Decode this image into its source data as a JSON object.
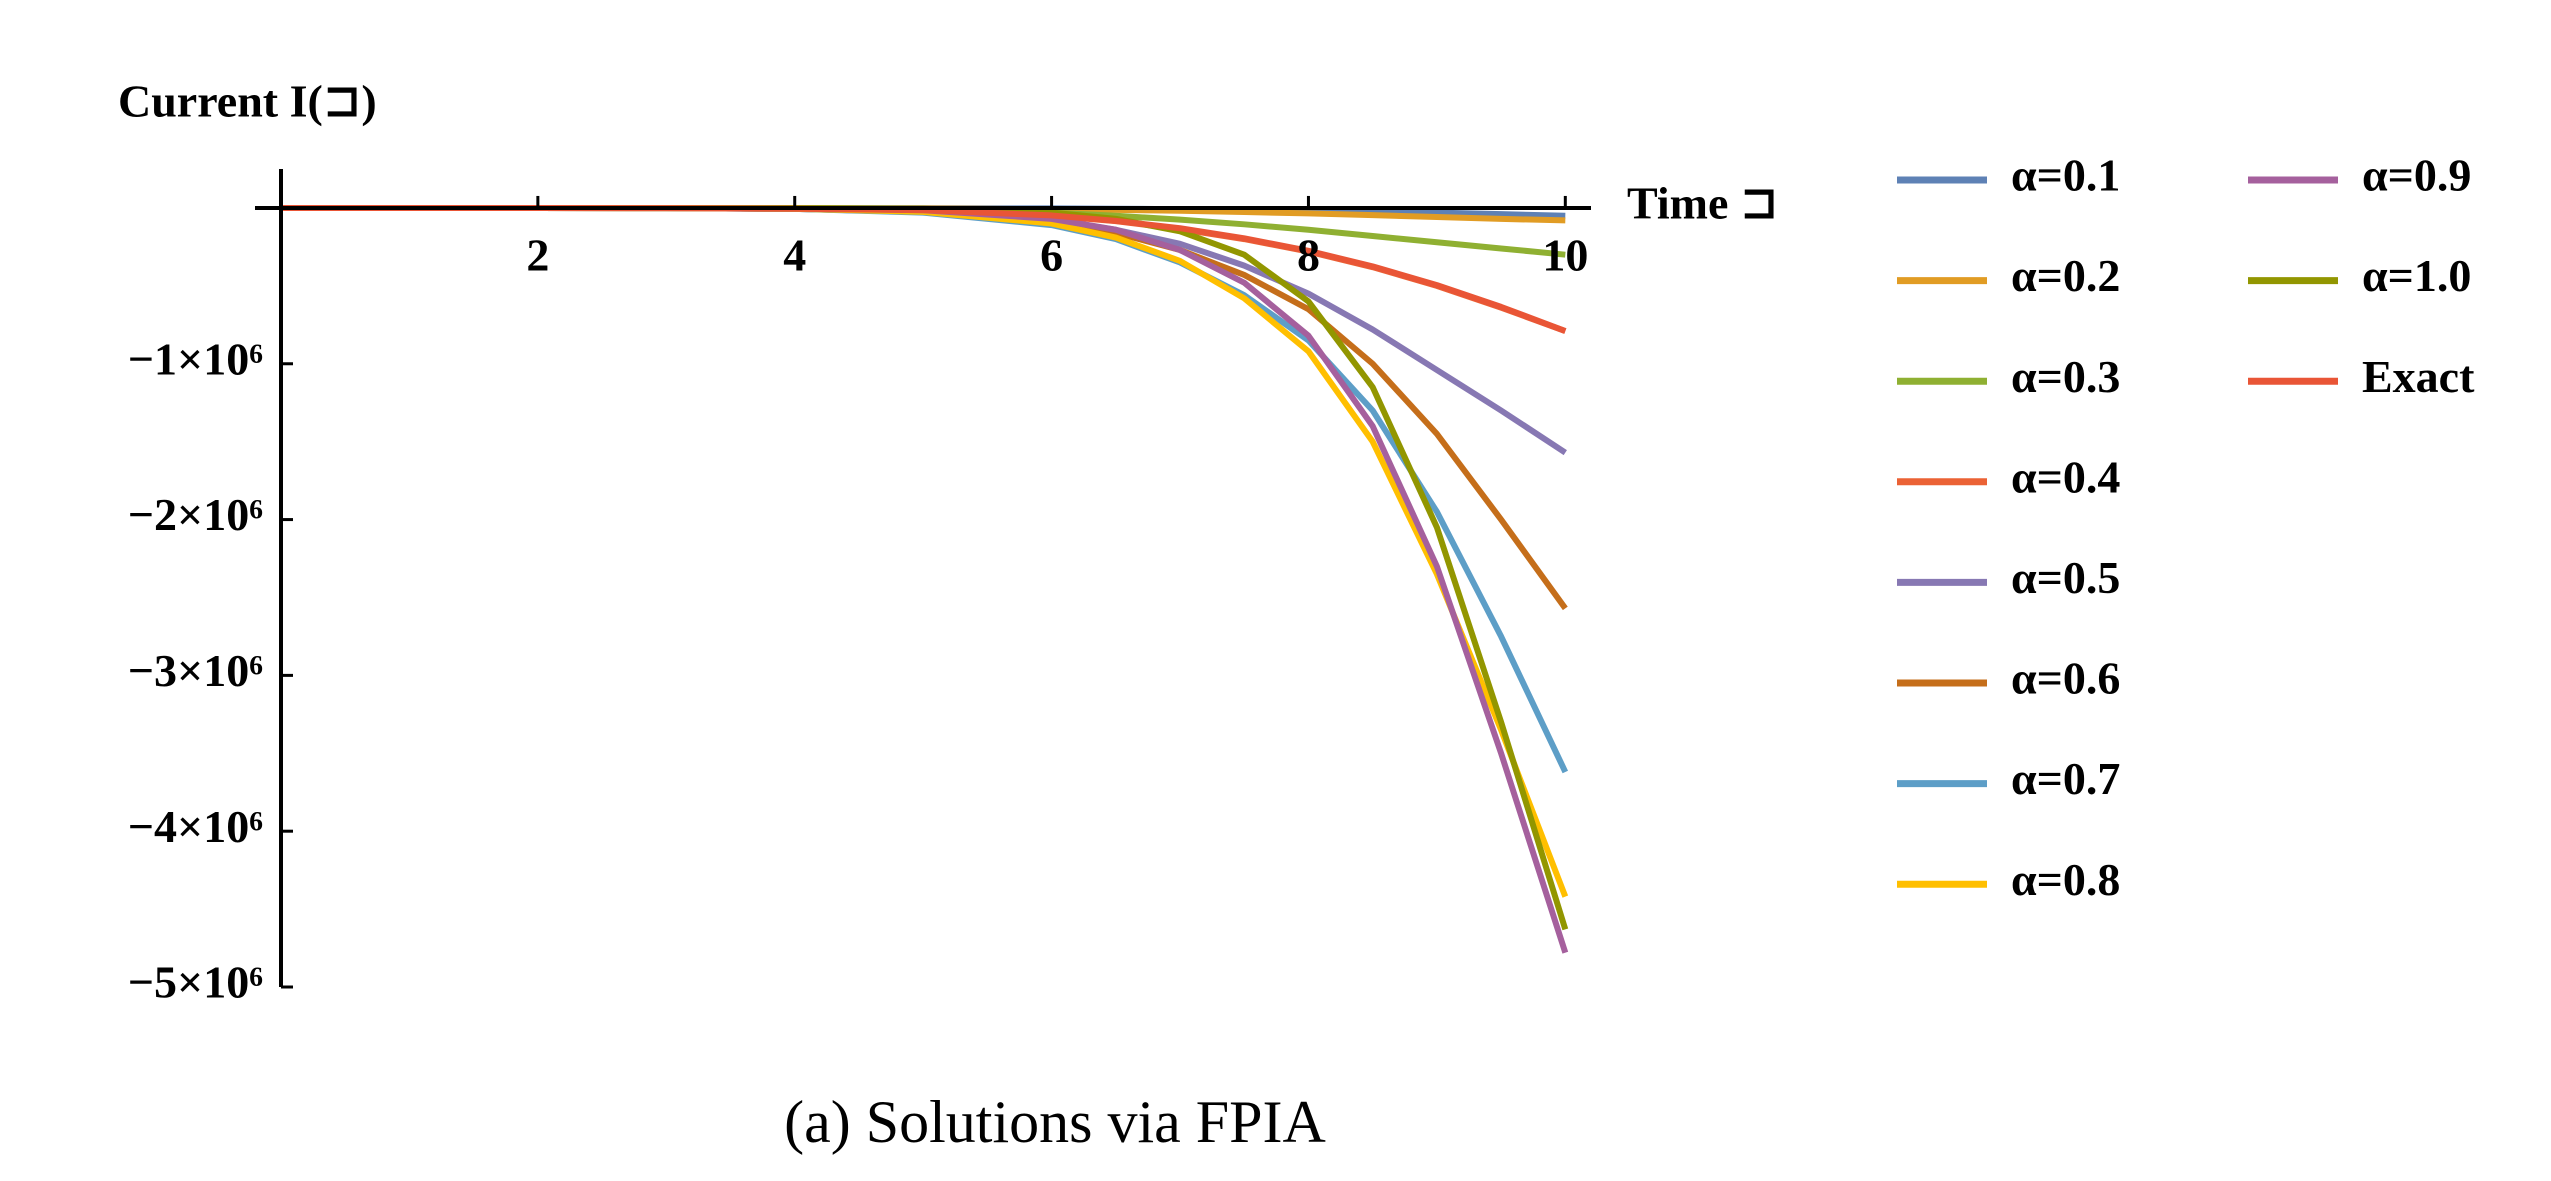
{
  "chart_data": {
    "type": "line",
    "x_label": "Time ⊐",
    "y_label": "Current I(⊐)",
    "caption": "(a) Solutions via FPIA",
    "x": [
      0,
      1,
      2,
      3,
      4,
      5,
      6,
      6.5,
      7,
      7.5,
      8,
      8.5,
      9,
      9.5,
      10
    ],
    "xlim": [
      0,
      10.2
    ],
    "ylim": [
      -5000000,
      250000
    ],
    "xticks": [
      2,
      4,
      6,
      8,
      10
    ],
    "yticks": [
      {
        "value": -1000000,
        "label": "−1×10⁶"
      },
      {
        "value": -2000000,
        "label": "−2×10⁶"
      },
      {
        "value": -3000000,
        "label": "−3×10⁶"
      },
      {
        "value": -4000000,
        "label": "−4×10⁶"
      },
      {
        "value": -5000000,
        "label": "−5×10⁶"
      }
    ],
    "series": [
      {
        "name": "α=0.1",
        "color": "#5e81b5",
        "values": [
          0,
          0,
          0,
          0,
          0,
          -1000,
          -3000,
          -5000,
          -8000,
          -12000,
          -17000,
          -23000,
          -30000,
          -40000,
          -50000
        ]
      },
      {
        "name": "α=0.2",
        "color": "#e19c24",
        "values": [
          0,
          0,
          0,
          0,
          -1000,
          -3000,
          -8000,
          -12000,
          -18000,
          -26000,
          -35000,
          -46000,
          -58000,
          -70000,
          -80000
        ]
      },
      {
        "name": "α=0.3",
        "color": "#8fb032",
        "values": [
          0,
          0,
          0,
          -1000,
          -3000,
          -10000,
          -30000,
          -50000,
          -75000,
          -105000,
          -140000,
          -180000,
          -220000,
          -260000,
          -300000
        ]
      },
      {
        "name": "α=0.4",
        "color": "#eb6235",
        "values": [
          0,
          0,
          0,
          -1000,
          -5000,
          -15000,
          -50000,
          -85000,
          -135000,
          -200000,
          -280000,
          -380000,
          -500000,
          -640000,
          -790000
        ]
      },
      {
        "name": "α=0.5",
        "color": "#8778b3",
        "values": [
          0,
          0,
          0,
          -1000,
          -6000,
          -25000,
          -80000,
          -140000,
          -230000,
          -370000,
          -550000,
          -780000,
          -1040000,
          -1300000,
          -1570000
        ]
      },
      {
        "name": "α=0.6",
        "color": "#c56e1a",
        "values": [
          0,
          0,
          0,
          -1000,
          -6000,
          -25000,
          -90000,
          -160000,
          -270000,
          -430000,
          -650000,
          -1000000,
          -1450000,
          -2000000,
          -2570000
        ]
      },
      {
        "name": "α=0.7",
        "color": "#5d9ec7",
        "values": [
          0,
          0,
          0,
          -1000,
          -6000,
          -30000,
          -110000,
          -200000,
          -350000,
          -560000,
          -850000,
          -1300000,
          -1950000,
          -2750000,
          -3620000
        ]
      },
      {
        "name": "α=0.8",
        "color": "#ffbf00",
        "values": [
          0,
          0,
          0,
          -1000,
          -5000,
          -25000,
          -100000,
          -190000,
          -340000,
          -580000,
          -920000,
          -1500000,
          -2350000,
          -3350000,
          -4420000
        ]
      },
      {
        "name": "α=0.9",
        "color": "#a5609d",
        "values": [
          0,
          0,
          0,
          0,
          -3000,
          -15000,
          -70000,
          -140000,
          -270000,
          -480000,
          -820000,
          -1400000,
          -2300000,
          -3500000,
          -4780000
        ]
      },
      {
        "name": "α=1.0",
        "color": "#929600",
        "values": [
          0,
          0,
          0,
          0,
          -1000,
          -5000,
          -30000,
          -70000,
          -150000,
          -300000,
          -600000,
          -1150000,
          -2050000,
          -3300000,
          -4630000
        ]
      },
      {
        "name": "Exact",
        "color": "#e95536",
        "values": [
          0,
          0,
          0,
          -1000,
          -5000,
          -14000,
          -48000,
          -83000,
          -130000,
          -195000,
          -275000,
          -375000,
          -495000,
          -635000,
          -790000
        ]
      }
    ]
  }
}
